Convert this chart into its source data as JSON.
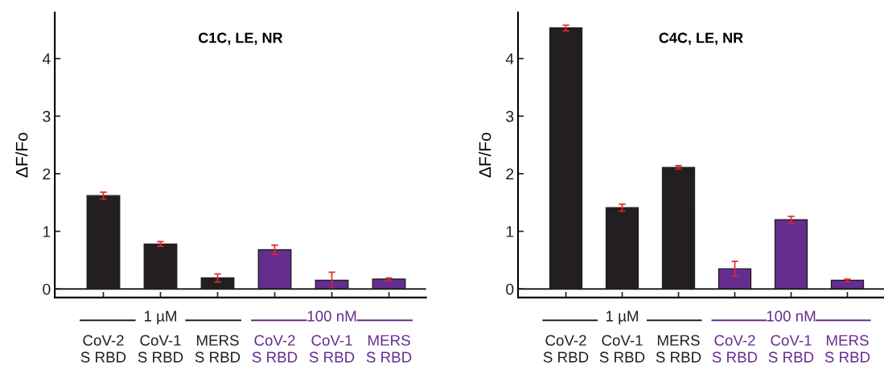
{
  "chart_data": [
    {
      "type": "bar",
      "title": "C1C, LE, NR",
      "ylabel": "ΔF/Fo",
      "categories": [
        "CoV-2\nS RBD",
        "CoV-1\nS RBD",
        "MERS\nS RBD",
        "CoV-2\nS RBD",
        "CoV-1\nS RBD",
        "MERS\nS RBD"
      ],
      "values": [
        1.62,
        0.78,
        0.19,
        0.68,
        0.15,
        0.17
      ],
      "errors": [
        0.06,
        0.04,
        0.07,
        0.08,
        0.14,
        0.02
      ],
      "colors": [
        "#231f20",
        "#231f20",
        "#231f20",
        "#652d90",
        "#652d90",
        "#652d90"
      ],
      "annotations": [
        "1 µM",
        "100 nM"
      ],
      "ylim": [
        -0.15,
        4.8
      ],
      "yticks": [
        0,
        1,
        2,
        3,
        4
      ],
      "ref_lines": [
        {
          "axis": "y",
          "value": 0,
          "label": null
        }
      ],
      "grid": false,
      "legend": false
    },
    {
      "type": "bar",
      "title": "C4C, LE, NR",
      "ylabel": "ΔF/Fo",
      "categories": [
        "CoV-2\nS RBD",
        "CoV-1\nS RBD",
        "MERS\nS RBD",
        "CoV-2\nS RBD",
        "CoV-1\nS RBD",
        "MERS\nS RBD"
      ],
      "values": [
        4.53,
        1.41,
        2.11,
        0.35,
        1.2,
        0.15
      ],
      "errors": [
        0.05,
        0.06,
        0.03,
        0.13,
        0.06,
        0.02
      ],
      "colors": [
        "#231f20",
        "#231f20",
        "#231f20",
        "#652d90",
        "#652d90",
        "#652d90"
      ],
      "annotations": [
        "1 µM",
        "100 nM"
      ],
      "ylim": [
        -0.15,
        4.8
      ],
      "yticks": [
        0,
        1,
        2,
        3,
        4
      ],
      "ref_lines": [
        {
          "axis": "y",
          "value": 0,
          "label": null
        }
      ],
      "grid": false,
      "legend": false
    }
  ]
}
